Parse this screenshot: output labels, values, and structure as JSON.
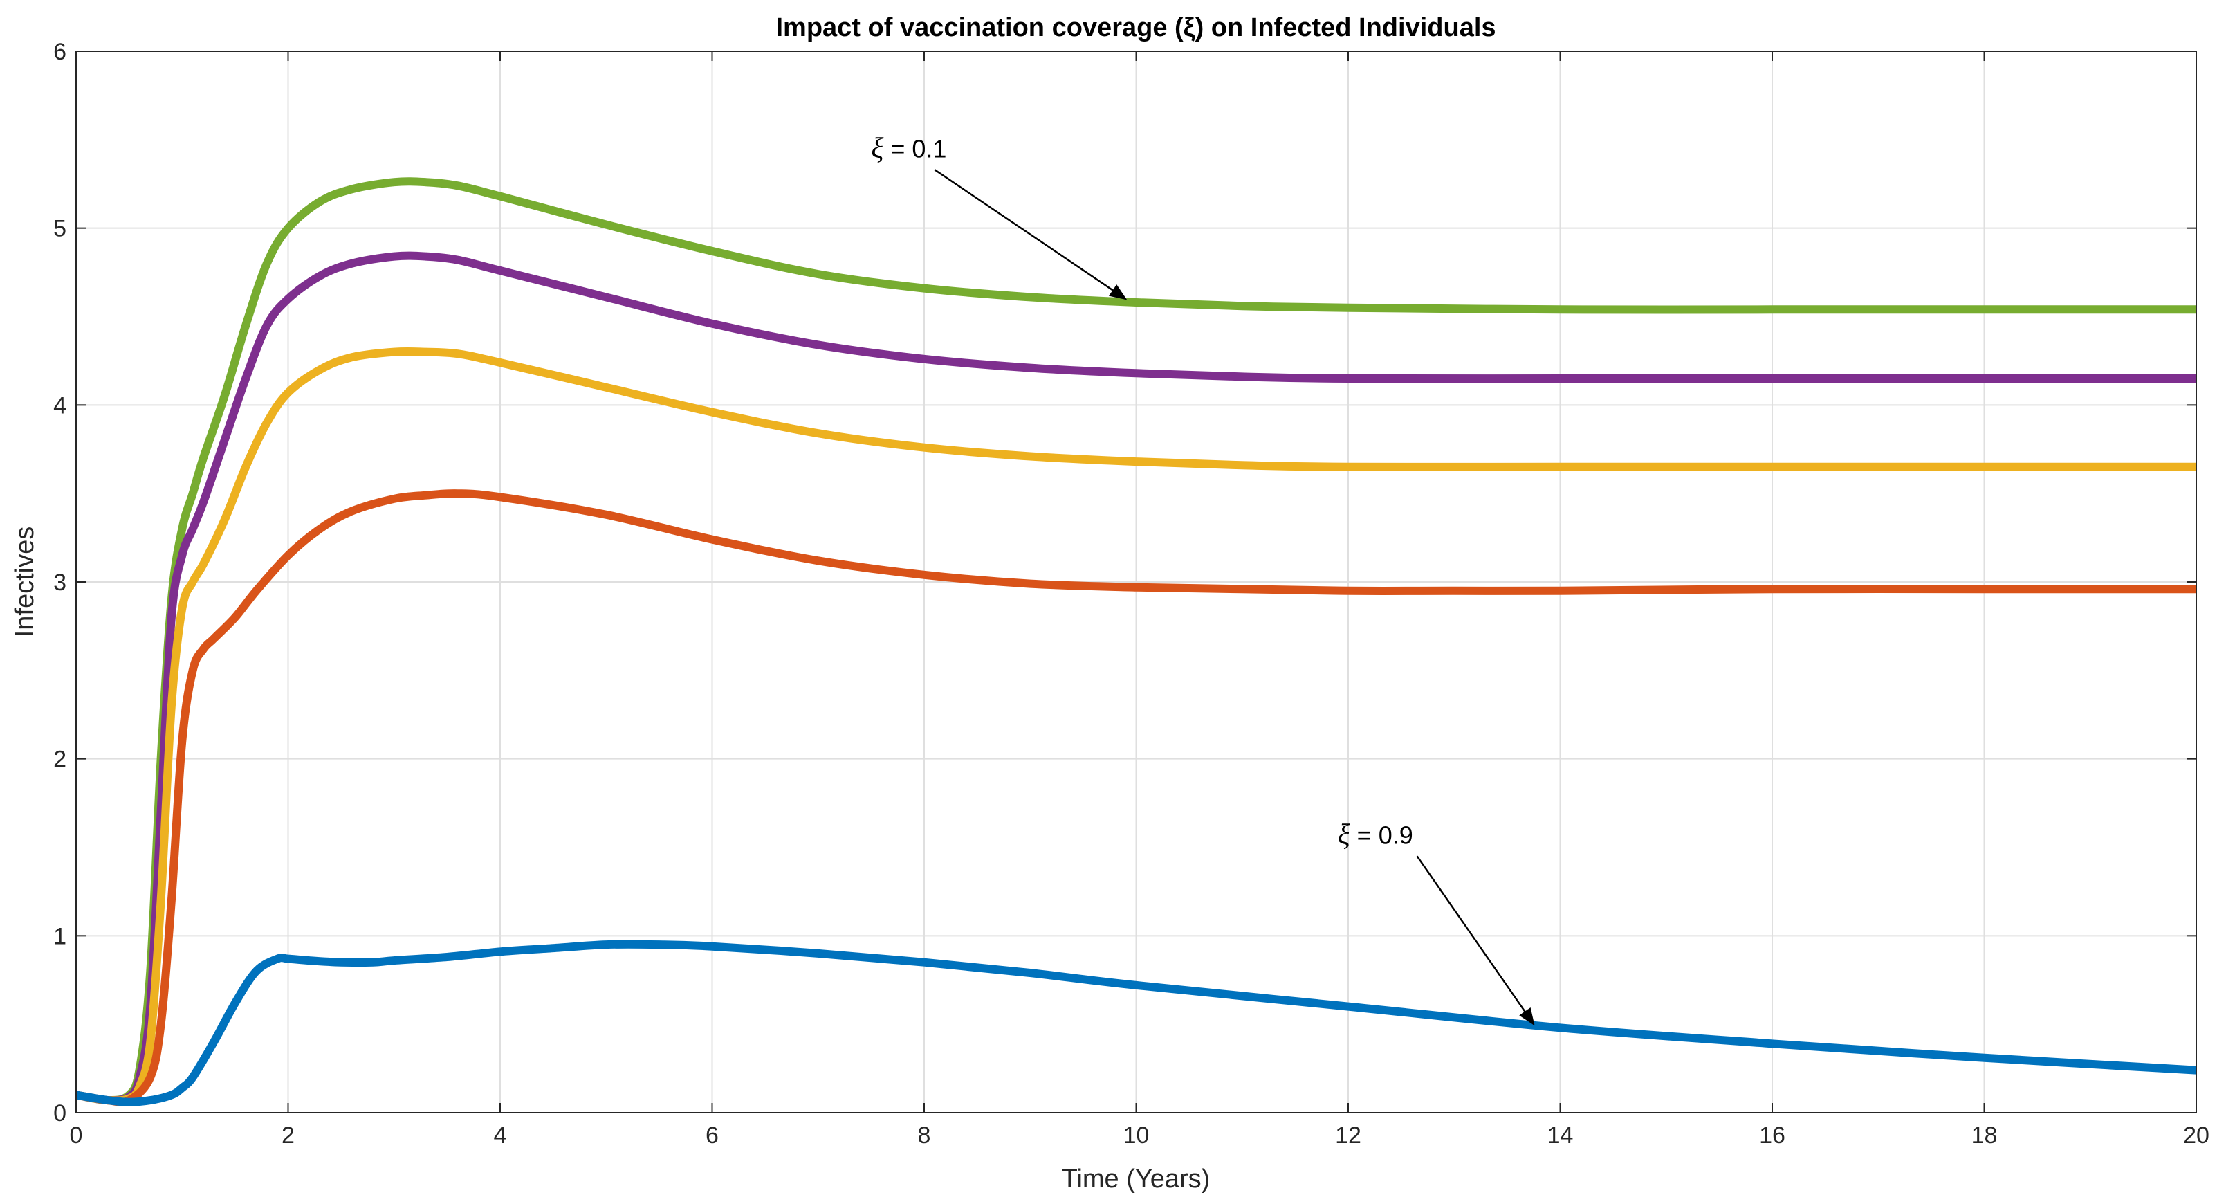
{
  "chart_data": {
    "type": "line",
    "title": "Impact of vaccination coverage (ξ) on Infected Individuals",
    "xlabel": "Time (Years)",
    "ylabel": "Infectives",
    "xlim": [
      0,
      20
    ],
    "ylim": [
      0,
      6
    ],
    "xticks": [
      0,
      2,
      4,
      6,
      8,
      10,
      12,
      14,
      16,
      18,
      20
    ],
    "yticks": [
      0,
      1,
      2,
      3,
      4,
      5,
      6
    ],
    "grid": true,
    "series": [
      {
        "name": "ξ = 0.1",
        "color": "#77AC30",
        "x": [
          0,
          0.3,
          0.5,
          0.6,
          0.7,
          0.8,
          0.9,
          1.0,
          1.1,
          1.2,
          1.4,
          1.6,
          1.8,
          2.0,
          2.3,
          2.6,
          3.0,
          3.3,
          3.6,
          4.0,
          5.0,
          6.0,
          7.0,
          8.0,
          9.0,
          10.0,
          11.0,
          12.0,
          14.0,
          16.0,
          18.0,
          20.0
        ],
        "values": [
          0.1,
          0.07,
          0.1,
          0.25,
          0.8,
          2.0,
          2.9,
          3.3,
          3.5,
          3.7,
          4.05,
          4.45,
          4.8,
          5.0,
          5.15,
          5.22,
          5.26,
          5.26,
          5.24,
          5.18,
          5.02,
          4.87,
          4.74,
          4.66,
          4.61,
          4.58,
          4.56,
          4.55,
          4.54,
          4.54,
          4.54,
          4.54
        ]
      },
      {
        "name": "",
        "color": "#7E2F8E",
        "x": [
          0,
          0.3,
          0.5,
          0.6,
          0.7,
          0.8,
          0.9,
          1.0,
          1.1,
          1.2,
          1.4,
          1.6,
          1.8,
          2.0,
          2.3,
          2.6,
          3.0,
          3.3,
          3.6,
          4.0,
          5.0,
          6.0,
          7.0,
          8.0,
          9.0,
          10.0,
          11.0,
          12.0,
          14.0,
          16.0,
          18.0,
          20.0
        ],
        "values": [
          0.1,
          0.07,
          0.09,
          0.2,
          0.6,
          1.7,
          2.8,
          3.15,
          3.3,
          3.45,
          3.8,
          4.15,
          4.45,
          4.6,
          4.73,
          4.8,
          4.84,
          4.84,
          4.82,
          4.76,
          4.61,
          4.46,
          4.34,
          4.26,
          4.21,
          4.18,
          4.16,
          4.15,
          4.15,
          4.15,
          4.15,
          4.15
        ]
      },
      {
        "name": "",
        "color": "#EDB120",
        "x": [
          0,
          0.3,
          0.5,
          0.6,
          0.7,
          0.8,
          0.9,
          1.0,
          1.1,
          1.2,
          1.4,
          1.6,
          1.8,
          2.0,
          2.3,
          2.6,
          3.0,
          3.3,
          3.6,
          4.0,
          5.0,
          6.0,
          7.0,
          8.0,
          9.0,
          10.0,
          11.0,
          12.0,
          14.0,
          16.0,
          18.0,
          20.0
        ],
        "values": [
          0.1,
          0.07,
          0.08,
          0.15,
          0.4,
          1.2,
          2.3,
          2.85,
          3.0,
          3.1,
          3.35,
          3.65,
          3.9,
          4.07,
          4.2,
          4.27,
          4.3,
          4.3,
          4.29,
          4.24,
          4.1,
          3.96,
          3.84,
          3.76,
          3.71,
          3.68,
          3.66,
          3.65,
          3.65,
          3.65,
          3.65,
          3.65
        ]
      },
      {
        "name": "",
        "color": "#D95319",
        "x": [
          0,
          0.3,
          0.5,
          0.7,
          0.8,
          0.9,
          1.0,
          1.1,
          1.2,
          1.3,
          1.5,
          1.7,
          2.0,
          2.3,
          2.6,
          3.0,
          3.3,
          3.6,
          4.0,
          5.0,
          6.0,
          7.0,
          8.0,
          9.0,
          10.0,
          11.0,
          12.0,
          13.0,
          14.0,
          16.0,
          18.0,
          20.0
        ],
        "values": [
          0.1,
          0.07,
          0.07,
          0.2,
          0.5,
          1.2,
          2.1,
          2.5,
          2.62,
          2.68,
          2.8,
          2.95,
          3.15,
          3.3,
          3.4,
          3.47,
          3.49,
          3.5,
          3.48,
          3.38,
          3.24,
          3.12,
          3.04,
          2.99,
          2.97,
          2.96,
          2.95,
          2.95,
          2.95,
          2.96,
          2.96,
          2.96
        ]
      },
      {
        "name": "ξ = 0.9",
        "color": "#0072BD",
        "x": [
          0,
          0.3,
          0.5,
          0.7,
          0.9,
          1.0,
          1.1,
          1.3,
          1.5,
          1.7,
          1.9,
          2.0,
          2.2,
          2.5,
          2.8,
          3.0,
          3.5,
          4.0,
          4.5,
          5.0,
          5.5,
          6.0,
          7.0,
          8.0,
          9.0,
          10.0,
          12.0,
          14.0,
          16.0,
          18.0,
          20.0
        ],
        "values": [
          0.1,
          0.07,
          0.06,
          0.07,
          0.1,
          0.14,
          0.2,
          0.4,
          0.62,
          0.8,
          0.87,
          0.87,
          0.86,
          0.85,
          0.85,
          0.86,
          0.88,
          0.91,
          0.93,
          0.95,
          0.95,
          0.94,
          0.9,
          0.85,
          0.79,
          0.72,
          0.6,
          0.48,
          0.39,
          0.31,
          0.24
        ]
      }
    ],
    "annotations": [
      {
        "text_symbol": "ξ",
        "text_rest": " = 0.1",
        "text_x": 7.5,
        "text_y": 5.4,
        "arrow_from": [
          8.1,
          5.33
        ],
        "arrow_to": [
          9.9,
          4.6
        ]
      },
      {
        "text_symbol": "ξ",
        "text_rest": " = 0.9",
        "text_x": 11.9,
        "text_y": 1.52,
        "arrow_from": [
          12.65,
          1.45
        ],
        "arrow_to": [
          13.75,
          0.5
        ]
      }
    ]
  }
}
